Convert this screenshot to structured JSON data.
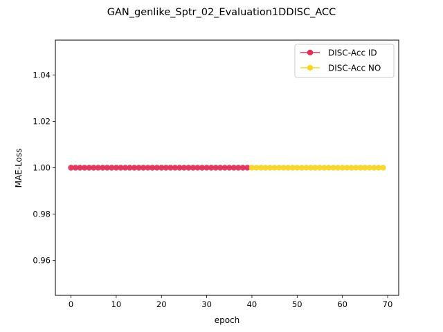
{
  "chart_data": {
    "type": "line",
    "title": "GAN_genlike_Sptr_02_Evaluation1DDISC_ACC",
    "xlabel": "epoch",
    "ylabel": "MAE-Loss",
    "xlim": [
      -3.45,
      72.45
    ],
    "ylim": [
      0.945,
      1.055
    ],
    "xticks": [
      0,
      10,
      20,
      30,
      40,
      50,
      60,
      70
    ],
    "yticks": [
      0.96,
      0.98,
      1.0,
      1.02,
      1.04
    ],
    "ytick_labels": [
      "0.96",
      "0.98",
      "1.00",
      "1.02",
      "1.04"
    ],
    "grid": false,
    "legend_position": "top-right",
    "series": [
      {
        "name": "DISC-Acc ID",
        "color": "#e0335a",
        "x_start": 0,
        "x_end": 39,
        "value": 1.0
      },
      {
        "name": "DISC-Acc NO",
        "color": "#f7d62a",
        "x_start": 40,
        "x_end": 69,
        "value": 1.0
      }
    ]
  }
}
